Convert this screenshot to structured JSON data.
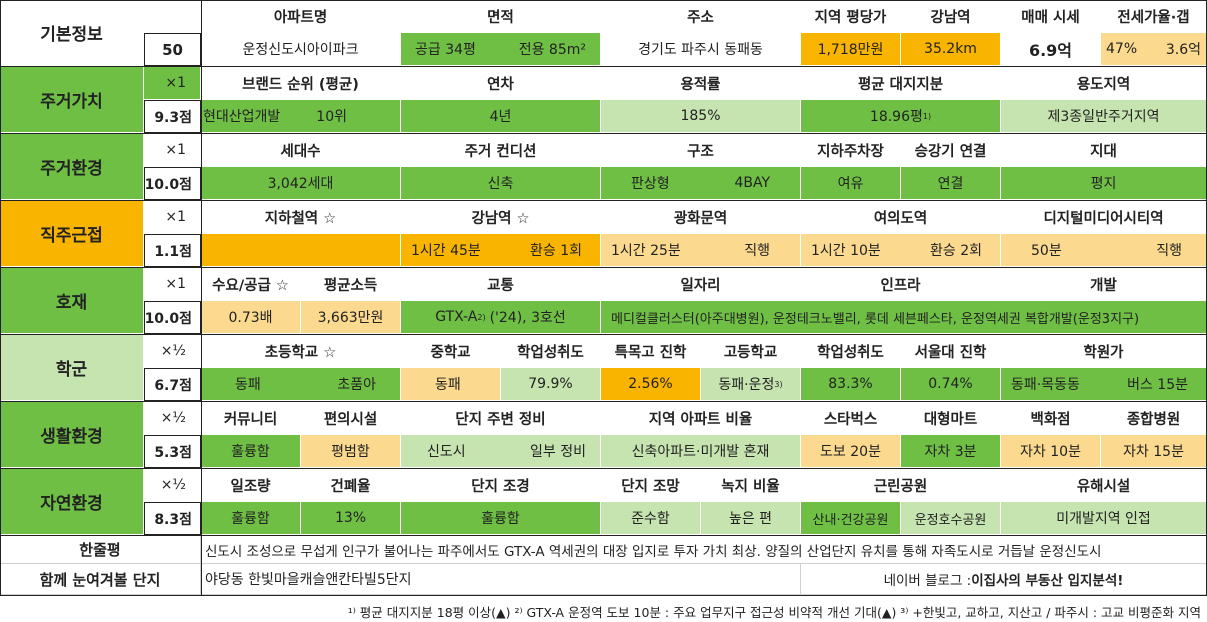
{
  "basic": {
    "title": "기본정보",
    "number": "50",
    "headers": [
      "아파트명",
      "면적",
      "주소",
      "지역 평당가",
      "강남역",
      "매매 시세",
      "전세가율·갭"
    ],
    "apt_name": "운정신도시아이파크",
    "area_supply": "공급 34평",
    "area_exclusive": "전용 85m²",
    "address": "경기도 파주시 동패동",
    "price_per_pyeong": "1,718만원",
    "gangnam_distance": "35.2km",
    "sale_price": "6.9억",
    "jeonse_ratio": "47%",
    "gap": "3.6억"
  },
  "sections": [
    {
      "name": "주거가치",
      "mult": "×1",
      "score": "9.3점",
      "headers": [
        "브랜드 순위 (평균)",
        "연차",
        "용적률",
        "평균 대지지분",
        "용도지역"
      ],
      "values": [
        "현대산업개발",
        "10위",
        "4년",
        "185%",
        "18.96평",
        "제3종일반주거지역"
      ],
      "footnote": "1)"
    },
    {
      "name": "주거환경",
      "mult": "×1",
      "score": "10.0점",
      "headers": [
        "세대수",
        "주거 컨디션",
        "구조",
        "지하주차장",
        "승강기 연결",
        "지대"
      ],
      "values": [
        "3,042세대",
        "신축",
        "판상형",
        "4BAY",
        "여유",
        "연결",
        "평지"
      ]
    },
    {
      "name": "직주근접",
      "mult": "×1",
      "score": "1.1점",
      "headers": [
        "지하철역 ☆",
        "강남역 ☆",
        "광화문역",
        "여의도역",
        "디지털미디어시티역"
      ],
      "values": [
        "",
        "1시간 45분",
        "환승 1회",
        "1시간 25분",
        "직행",
        "1시간 10분",
        "환승 2회",
        "50분",
        "직행"
      ]
    },
    {
      "name": "호재",
      "mult": "×1",
      "score": "10.0점",
      "headers": [
        "수요/공급 ☆",
        "평균소득",
        "교통",
        "일자리",
        "인프라",
        "개발"
      ],
      "values": [
        "0.73배",
        "3,663만원",
        "GTX-A",
        "('24), 3호선",
        "메디컬클러스터(아주대병원), 운정테크노밸리, 롯데 세븐페스타, 운정역세권 복합개발(운정3지구)"
      ],
      "footnote": "2)"
    },
    {
      "name": "학군",
      "mult": "×½",
      "score": "6.7점",
      "headers": [
        "초등학교 ☆",
        "중학교",
        "학업성취도",
        "특목고 진학",
        "고등학교",
        "학업성취도",
        "서울대 진학",
        "학원가"
      ],
      "values": [
        "동패",
        "초품아",
        "동패",
        "79.9%",
        "2.56%",
        "동패·운정",
        "83.3%",
        "0.74%",
        "동패·목동동",
        "버스 15분"
      ],
      "footnote": "3)"
    },
    {
      "name": "생활환경",
      "mult": "×½",
      "score": "5.3점",
      "headers": [
        "커뮤니티",
        "편의시설",
        "단지 주변 정비",
        "지역 아파트 비율",
        "스타벅스",
        "대형마트",
        "백화점",
        "종합병원"
      ],
      "values": [
        "훌륭함",
        "평범함",
        "신도시",
        "일부 정비",
        "신축아파트·미개발 혼재",
        "도보 20분",
        "자차 3분",
        "자차 10분",
        "자차 15분"
      ]
    },
    {
      "name": "자연환경",
      "mult": "×½",
      "score": "8.3점",
      "headers": [
        "일조량",
        "건폐율",
        "단지 조경",
        "단지 조망",
        "녹지 비율",
        "근린공원",
        "유해시설"
      ],
      "values": [
        "훌륭함",
        "13%",
        "훌륭함",
        "준수함",
        "높은 편",
        "산내·건강공원",
        "운정호수공원",
        "미개발지역 인접"
      ]
    }
  ],
  "summary": {
    "label": "한줄평",
    "text": "신도시 조성으로 무섭게 인구가 불어나는 파주에서도 GTX-A 역세권의 대장 입지로 투자 가치 최상. 양질의 산업단지 유치를 통해 자족도시로 거듭날 운정신도시"
  },
  "related": {
    "label": "함께 눈여겨볼 단지",
    "text": "야당동 한빛마을캐슬앤칸타빌5단지",
    "blog_prefix": "네이버 블로그 : ",
    "blog_name": "이집사의 부동산 입지분석!"
  },
  "footnotes": "¹⁾ 평균 대지지분 18평 이상(▲) ²⁾ GTX-A 운정역 도보 10분 : 주요 업무지구 접근성 비약적 개선 기대(▲) ³⁾ +한빛고, 교하고, 지산고 / 파주시 : 고교 비평준화 지역"
}
